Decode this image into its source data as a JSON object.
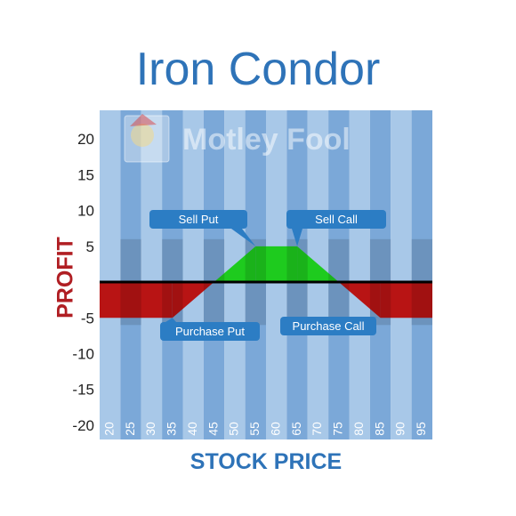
{
  "chart_data": {
    "type": "area",
    "title": "Iron Condor",
    "xlabel": "STOCK PRICE",
    "ylabel": "PROFIT",
    "categories": [
      20,
      25,
      30,
      35,
      40,
      45,
      50,
      55,
      60,
      65,
      70,
      75,
      80,
      85,
      90,
      95
    ],
    "xlim": [
      17.5,
      97.5
    ],
    "ylim": [
      -22,
      24
    ],
    "yticks": [
      20,
      15,
      10,
      5,
      -5,
      -10,
      -15,
      -20
    ],
    "payoff": {
      "x": [
        17.5,
        35,
        45,
        55,
        65,
        75,
        85,
        97.5
      ],
      "y": [
        -5,
        -5,
        0,
        5,
        5,
        0,
        -5,
        -5
      ]
    },
    "annotations": [
      {
        "label": "Sell Put",
        "x": 55,
        "y": 5
      },
      {
        "label": "Sell Call",
        "x": 65,
        "y": 5
      },
      {
        "label": "Purchase Put",
        "x": 35,
        "y": -5
      },
      {
        "label": "Purchase Call",
        "x": 85,
        "y": -5
      }
    ],
    "watermark": "Motley Fool",
    "colors": {
      "profit": "#1ecb1e",
      "loss": "#b81414",
      "zero_line": "#000000",
      "stripe_light": "#a8c8e8",
      "stripe_dark": "#7ba8d8",
      "callout": "#2c7dc4",
      "title": "#2e73b8",
      "ylabel": "#b01e23"
    },
    "grid": false,
    "legend": "none"
  }
}
